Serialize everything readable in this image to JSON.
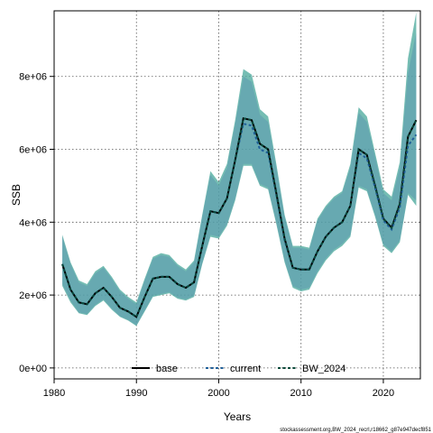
{
  "chart_data": {
    "type": "line",
    "xlabel": "Years",
    "ylabel": "SSB",
    "xlim": [
      1980,
      2024.5
    ],
    "ylim": [
      -300000,
      9800000
    ],
    "x_ticks": [
      1980,
      1990,
      2000,
      2010,
      2020
    ],
    "x_tick_labels": [
      "1980",
      "1990",
      "2000",
      "2010",
      "2020"
    ],
    "y_ticks": [
      0,
      2000000,
      4000000,
      6000000,
      8000000
    ],
    "y_tick_labels": [
      "0e+00",
      "2e+06",
      "4e+06",
      "6e+06",
      "8e+06"
    ],
    "grid": true,
    "legend_position": "bottom",
    "x": [
      1981,
      1982,
      1983,
      1984,
      1985,
      1986,
      1987,
      1988,
      1989,
      1990,
      1991,
      1992,
      1993,
      1994,
      1995,
      1996,
      1997,
      1998,
      1999,
      2000,
      2001,
      2002,
      2003,
      2004,
      2005,
      2006,
      2007,
      2008,
      2009,
      2010,
      2011,
      2012,
      2013,
      2014,
      2015,
      2016,
      2017,
      2018,
      2019,
      2020,
      2021,
      2022,
      2023,
      2024
    ],
    "series": [
      {
        "name": "base",
        "color": "#000000",
        "dash": "solid",
        "values": [
          2850000,
          2150000,
          1800000,
          1750000,
          2050000,
          2200000,
          1950000,
          1650000,
          1550000,
          1400000,
          1950000,
          2450000,
          2500000,
          2500000,
          2300000,
          2200000,
          2350000,
          3350000,
          4300000,
          4250000,
          4650000,
          5700000,
          6850000,
          6800000,
          6150000,
          6000000,
          4800000,
          3550000,
          2750000,
          2700000,
          2700000,
          3200000,
          3600000,
          3850000,
          4000000,
          4450000,
          6000000,
          5850000,
          5000000,
          4100000,
          3850000,
          4500000,
          6350000,
          6800000
        ],
        "upper": [
          3650000,
          2900000,
          2400000,
          2300000,
          2650000,
          2800000,
          2500000,
          2150000,
          1950000,
          1800000,
          2450000,
          3050000,
          3150000,
          3100000,
          2850000,
          2700000,
          2950000,
          4200000,
          5400000,
          5100000,
          5600000,
          6800000,
          8200000,
          8050000,
          7100000,
          6900000,
          5600000,
          4200000,
          3350000,
          3350000,
          3300000,
          4100000,
          4450000,
          4700000,
          4850000,
          5600000,
          7150000,
          6900000,
          5900000,
          4900000,
          4700000,
          5650000,
          8500000,
          9750000
        ],
        "lower": [
          2250000,
          1800000,
          1500000,
          1450000,
          1700000,
          1850000,
          1600000,
          1400000,
          1300000,
          1150000,
          1550000,
          1950000,
          2000000,
          2050000,
          1900000,
          1850000,
          1950000,
          2850000,
          3600000,
          3550000,
          3900000,
          4600000,
          5550000,
          5550000,
          5000000,
          4900000,
          3950000,
          2900000,
          2200000,
          2100000,
          2150000,
          2600000,
          2950000,
          3200000,
          3350000,
          3600000,
          4950000,
          4850000,
          4150000,
          3350000,
          3150000,
          3450000,
          4750000,
          4450000
        ]
      },
      {
        "name": "current",
        "color": "#1f5f99",
        "dash": "dashed",
        "values": [
          2850000,
          2150000,
          1800000,
          1750000,
          2050000,
          2200000,
          1950000,
          1650000,
          1550000,
          1400000,
          1950000,
          2450000,
          2500000,
          2500000,
          2300000,
          2200000,
          2350000,
          3350000,
          4300000,
          4250000,
          4650000,
          5700000,
          6700000,
          6650000,
          6000000,
          5900000,
          4750000,
          3500000,
          2750000,
          2700000,
          2700000,
          3200000,
          3600000,
          3850000,
          4000000,
          4450000,
          5900000,
          5750000,
          4950000,
          4050000,
          3800000,
          4400000,
          6100000,
          6400000
        ],
        "upper": [
          3600000,
          2850000,
          2350000,
          2250000,
          2600000,
          2750000,
          2450000,
          2100000,
          1900000,
          1750000,
          2400000,
          3000000,
          3100000,
          3050000,
          2800000,
          2650000,
          2900000,
          4150000,
          5300000,
          5000000,
          5500000,
          6700000,
          8000000,
          7850000,
          6950000,
          6750000,
          5500000,
          4150000,
          3300000,
          3300000,
          3250000,
          4050000,
          4400000,
          4650000,
          4800000,
          5500000,
          7000000,
          6750000,
          5800000,
          4800000,
          4600000,
          5500000,
          8100000,
          9200000
        ],
        "lower": [
          2300000,
          1850000,
          1520000,
          1480000,
          1730000,
          1880000,
          1630000,
          1420000,
          1320000,
          1170000,
          1580000,
          1980000,
          2030000,
          2080000,
          1930000,
          1880000,
          1980000,
          2880000,
          3650000,
          3600000,
          3950000,
          4650000,
          5600000,
          5600000,
          5050000,
          4950000,
          4000000,
          2950000,
          2250000,
          2150000,
          2200000,
          2650000,
          3000000,
          3250000,
          3400000,
          3650000,
          5000000,
          4900000,
          4200000,
          3400000,
          3200000,
          3500000,
          4800000,
          4600000
        ]
      },
      {
        "name": "BW_2024",
        "color": "#0b4a3a",
        "dash": "dashed",
        "values": [
          2850000,
          2150000,
          1800000,
          1750000,
          2050000,
          2200000,
          1950000,
          1650000,
          1550000,
          1400000,
          1950000,
          2450000,
          2500000,
          2500000,
          2300000,
          2200000,
          2350000,
          3350000,
          4300000,
          4250000,
          4650000,
          5700000,
          6850000,
          6800000,
          6150000,
          6000000,
          4800000,
          3550000,
          2750000,
          2700000,
          2700000,
          3200000,
          3600000,
          3850000,
          4000000,
          4450000,
          6000000,
          5850000,
          5000000,
          4100000,
          3850000,
          4500000,
          6350000,
          6800000
        ],
        "upper": [
          3650000,
          2900000,
          2400000,
          2300000,
          2650000,
          2800000,
          2500000,
          2150000,
          1950000,
          1800000,
          2450000,
          3050000,
          3150000,
          3100000,
          2850000,
          2700000,
          2950000,
          4200000,
          5400000,
          5100000,
          5600000,
          6800000,
          8200000,
          8050000,
          7100000,
          6900000,
          5600000,
          4200000,
          3350000,
          3350000,
          3300000,
          4100000,
          4450000,
          4700000,
          4850000,
          5600000,
          7150000,
          6900000,
          5900000,
          4900000,
          4700000,
          5650000,
          8500000,
          9750000
        ],
        "lower": [
          2250000,
          1800000,
          1500000,
          1450000,
          1700000,
          1850000,
          1600000,
          1400000,
          1300000,
          1150000,
          1550000,
          1950000,
          2000000,
          2050000,
          1900000,
          1850000,
          1950000,
          2850000,
          3600000,
          3550000,
          3900000,
          4600000,
          5550000,
          5550000,
          5000000,
          4900000,
          3950000,
          2900000,
          2200000,
          2100000,
          2150000,
          2600000,
          2950000,
          3200000,
          3350000,
          3600000,
          4950000,
          4850000,
          4150000,
          3350000,
          3150000,
          3450000,
          4750000,
          4450000
        ]
      }
    ]
  },
  "band_colors": {
    "base": "#6fc7b6",
    "current": "#7a8fd0",
    "BW_2024": "#3a9a8f"
  },
  "footer_note": "stockassessment.org,BW_2024_recrl,r18662_g87e947decf851"
}
